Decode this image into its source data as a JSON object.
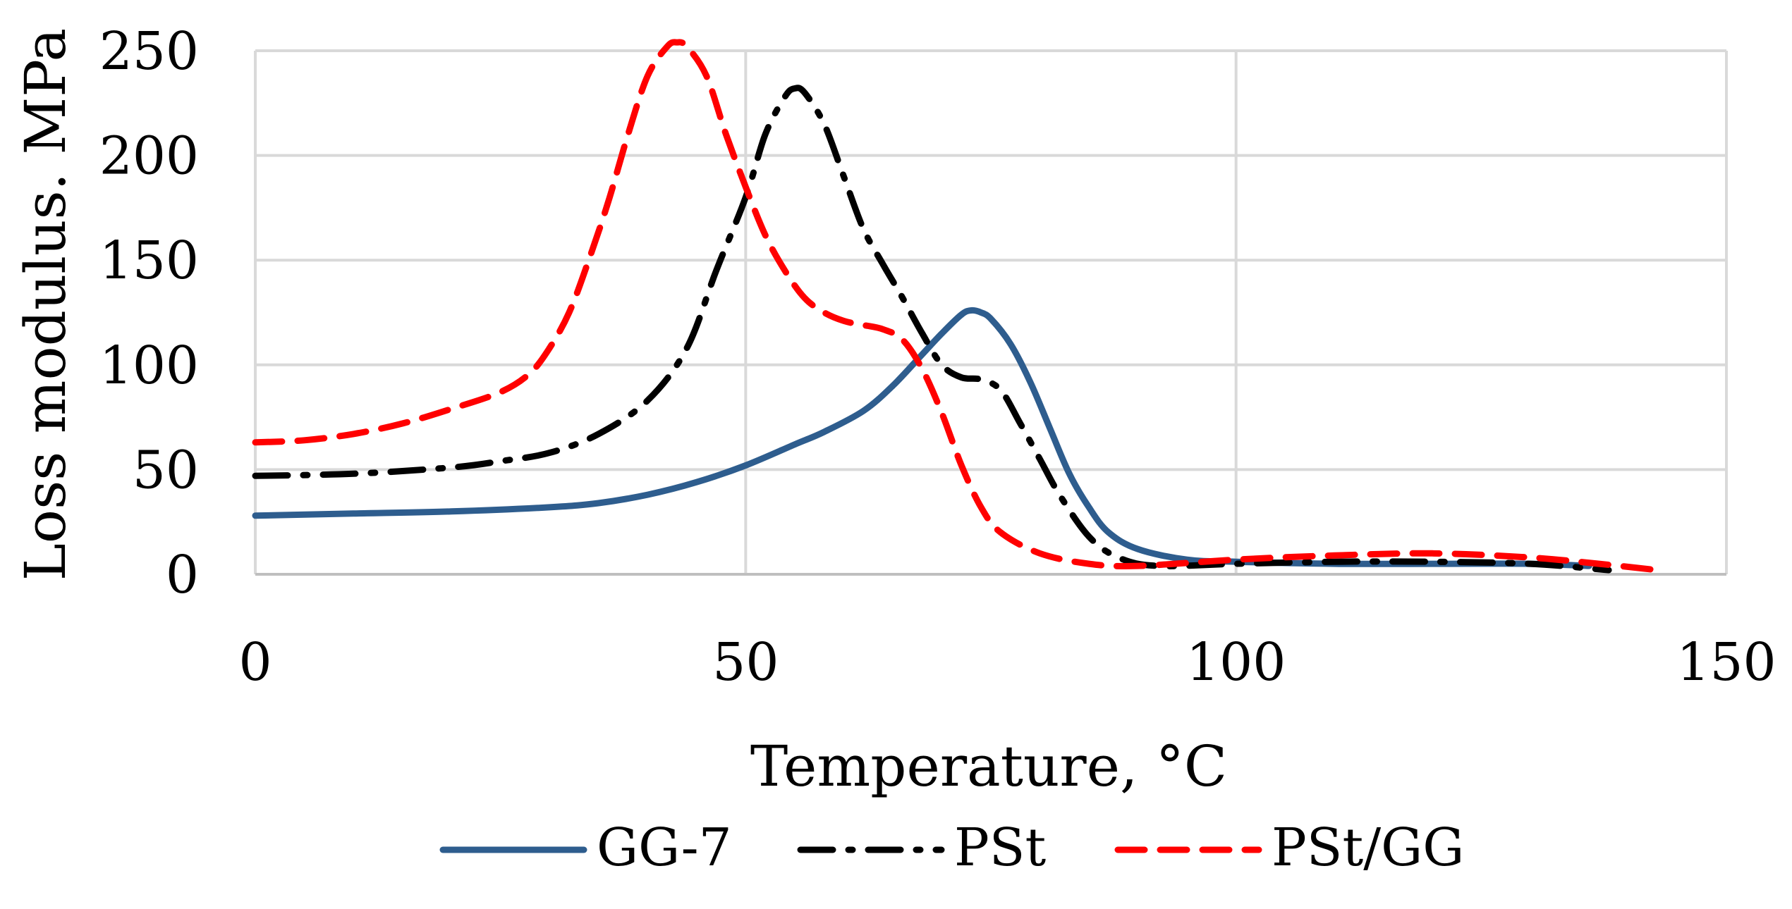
{
  "chart_data": {
    "type": "line",
    "title": "",
    "xlabel": "Temperature,  °C",
    "ylabel": "Loss modulus. MPa",
    "xlim": [
      0,
      150
    ],
    "ylim": [
      0,
      250
    ],
    "xticks": [
      0,
      50,
      100,
      150
    ],
    "yticks": [
      0,
      50,
      100,
      150,
      200,
      250
    ],
    "grid": true,
    "legend_position": "bottom",
    "series": [
      {
        "name": "GG-7",
        "color": "#2e5d8e",
        "style": "solid",
        "points": [
          [
            0,
            28
          ],
          [
            10,
            29
          ],
          [
            20,
            30
          ],
          [
            30,
            32
          ],
          [
            35,
            34
          ],
          [
            40,
            38
          ],
          [
            45,
            44
          ],
          [
            50,
            52
          ],
          [
            55,
            62
          ],
          [
            58,
            68
          ],
          [
            62,
            78
          ],
          [
            65,
            90
          ],
          [
            68,
            105
          ],
          [
            70,
            115
          ],
          [
            72,
            124
          ],
          [
            73,
            126
          ],
          [
            74,
            125
          ],
          [
            75,
            122
          ],
          [
            77,
            110
          ],
          [
            79,
            92
          ],
          [
            81,
            70
          ],
          [
            83,
            48
          ],
          [
            85,
            32
          ],
          [
            87,
            20
          ],
          [
            90,
            12
          ],
          [
            95,
            7
          ],
          [
            100,
            6
          ],
          [
            110,
            5
          ],
          [
            120,
            5
          ],
          [
            130,
            5
          ],
          [
            136,
            4
          ]
        ]
      },
      {
        "name": "PSt",
        "color": "#000000",
        "style": "dashdot",
        "points": [
          [
            0,
            47
          ],
          [
            10,
            48
          ],
          [
            20,
            51
          ],
          [
            25,
            54
          ],
          [
            30,
            58
          ],
          [
            35,
            67
          ],
          [
            40,
            83
          ],
          [
            44,
            108
          ],
          [
            47,
            145
          ],
          [
            50,
            180
          ],
          [
            52,
            210
          ],
          [
            54,
            228
          ],
          [
            55,
            232
          ],
          [
            56,
            230
          ],
          [
            58,
            215
          ],
          [
            60,
            190
          ],
          [
            62,
            165
          ],
          [
            64,
            148
          ],
          [
            66,
            132
          ],
          [
            68,
            115
          ],
          [
            70,
            100
          ],
          [
            72,
            94
          ],
          [
            74,
            93
          ],
          [
            76,
            88
          ],
          [
            78,
            72
          ],
          [
            80,
            55
          ],
          [
            82,
            38
          ],
          [
            85,
            18
          ],
          [
            88,
            8
          ],
          [
            92,
            4
          ],
          [
            100,
            5
          ],
          [
            110,
            6
          ],
          [
            120,
            6
          ],
          [
            130,
            5
          ],
          [
            138,
            2
          ]
        ]
      },
      {
        "name": "PSt/GG",
        "color": "#ff0000",
        "style": "dashed",
        "points": [
          [
            0,
            63
          ],
          [
            5,
            64
          ],
          [
            10,
            67
          ],
          [
            15,
            72
          ],
          [
            20,
            79
          ],
          [
            25,
            87
          ],
          [
            28,
            96
          ],
          [
            30,
            108
          ],
          [
            32,
            125
          ],
          [
            34,
            150
          ],
          [
            36,
            178
          ],
          [
            38,
            210
          ],
          [
            40,
            238
          ],
          [
            42,
            252
          ],
          [
            43,
            254
          ],
          [
            44,
            252
          ],
          [
            46,
            238
          ],
          [
            48,
            210
          ],
          [
            50,
            185
          ],
          [
            52,
            162
          ],
          [
            54,
            145
          ],
          [
            56,
            132
          ],
          [
            58,
            125
          ],
          [
            60,
            121
          ],
          [
            62,
            119
          ],
          [
            64,
            117
          ],
          [
            66,
            112
          ],
          [
            68,
            98
          ],
          [
            70,
            77
          ],
          [
            72,
            52
          ],
          [
            74,
            32
          ],
          [
            76,
            20
          ],
          [
            80,
            10
          ],
          [
            85,
            5
          ],
          [
            90,
            4
          ],
          [
            100,
            7
          ],
          [
            110,
            9
          ],
          [
            120,
            10
          ],
          [
            130,
            8
          ],
          [
            137,
            5
          ],
          [
            143,
            2
          ]
        ]
      }
    ]
  }
}
